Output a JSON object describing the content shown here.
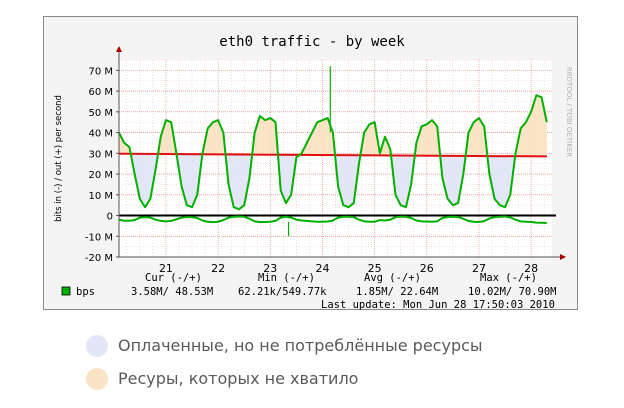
{
  "chart_data": {
    "type": "area",
    "title": "eth0 traffic - by week",
    "ylabel": "bits in (-) / out (+) per second",
    "watermark": "RRDTOOL / TOBI OETIKER",
    "ylim": [
      -20000000,
      75000000
    ],
    "yticks": [
      -20000000,
      -10000000,
      0,
      10000000,
      20000000,
      30000000,
      40000000,
      50000000,
      60000000,
      70000000
    ],
    "ytick_labels": [
      "-20 M",
      "-10 M",
      "0",
      "10 M",
      "20 M",
      "30 M",
      "40 M",
      "50 M",
      "60 M",
      "70 M"
    ],
    "xlim": [
      20.1,
      28.4
    ],
    "xticks": [
      21,
      22,
      23,
      24,
      25,
      26,
      27,
      28
    ],
    "xtick_labels": [
      "21",
      "22",
      "23",
      "24",
      "25",
      "26",
      "27",
      "28"
    ],
    "grid": true,
    "threshold": {
      "start": 29.8,
      "end": 28.5,
      "color": "#e01010"
    },
    "series": [
      {
        "name": "bps",
        "color": "#00b000",
        "x": [
          20.1,
          20.2,
          20.3,
          20.4,
          20.5,
          20.6,
          20.7,
          20.8,
          20.9,
          21.0,
          21.1,
          21.2,
          21.3,
          21.4,
          21.5,
          21.6,
          21.7,
          21.8,
          21.9,
          22.0,
          22.1,
          22.2,
          22.3,
          22.4,
          22.5,
          22.6,
          22.7,
          22.8,
          22.9,
          23.0,
          23.1,
          23.2,
          23.3,
          23.4,
          23.5,
          23.6,
          23.7,
          23.8,
          23.9,
          24.0,
          24.1,
          24.2,
          24.3,
          24.4,
          24.5,
          24.6,
          24.7,
          24.8,
          24.9,
          25.0,
          25.1,
          25.2,
          25.3,
          25.4,
          25.5,
          25.6,
          25.7,
          25.8,
          25.9,
          26.0,
          26.1,
          26.2,
          26.3,
          26.4,
          26.5,
          26.6,
          26.7,
          26.8,
          26.9,
          27.0,
          27.1,
          27.2,
          27.3,
          27.4,
          27.5,
          27.6,
          27.7,
          27.8,
          27.9,
          28.0,
          28.1,
          28.2,
          28.3
        ],
        "out": [
          40,
          35,
          33,
          20,
          8,
          4,
          8,
          22,
          38,
          46,
          45,
          30,
          14,
          5,
          4,
          10,
          30,
          42,
          45,
          46,
          40,
          15,
          4,
          3,
          5,
          18,
          40,
          48,
          46,
          47,
          45,
          12,
          6,
          10,
          28,
          30,
          35,
          40,
          45,
          46,
          47,
          40,
          14,
          5,
          4,
          6,
          25,
          40,
          44,
          45,
          30,
          38,
          32,
          10,
          5,
          4,
          15,
          35,
          43,
          44,
          46,
          43,
          18,
          8,
          5,
          6,
          20,
          40,
          45,
          47,
          43,
          20,
          8,
          5,
          4,
          10,
          30,
          42,
          45,
          50,
          58,
          57,
          45
        ],
        "in": [
          -2,
          -2.5,
          -2.5,
          -2.2,
          -1,
          -0.8,
          -1,
          -2,
          -2.6,
          -2.8,
          -2.6,
          -1.8,
          -1,
          -0.8,
          -0.8,
          -1.2,
          -2.4,
          -3,
          -3.2,
          -3,
          -2.2,
          -1,
          -0.6,
          -0.5,
          -0.6,
          -1.5,
          -2.8,
          -3.2,
          -3.1,
          -3,
          -2.6,
          -1,
          -0.6,
          -1,
          -2,
          -2.4,
          -2.6,
          -2.8,
          -3,
          -3,
          -2.9,
          -2.4,
          -1,
          -0.6,
          -0.6,
          -0.8,
          -2,
          -2.8,
          -3,
          -3,
          -2.2,
          -2.4,
          -2,
          -0.8,
          -0.6,
          -0.6,
          -1.2,
          -2.4,
          -2.8,
          -2.9,
          -3,
          -2.8,
          -1.2,
          -0.7,
          -0.6,
          -0.7,
          -1.6,
          -2.6,
          -3,
          -3.1,
          -2.7,
          -1.4,
          -0.8,
          -0.6,
          -0.5,
          -0.9,
          -2,
          -2.8,
          -3,
          -3.1,
          -3.4,
          -3.5,
          -3.6
        ]
      }
    ],
    "spikes": [
      {
        "x": 24.15,
        "value": 72
      },
      {
        "x": 23.35,
        "value": -10
      }
    ],
    "stats": {
      "headers": [
        "Cur (-/+)",
        "Min (-/+)",
        "Avg (-/+)",
        "Max (-/+)"
      ],
      "series_label": "bps",
      "values": [
        "3.58M/ 48.53M",
        "62.21k/549.77k",
        "1.85M/ 22.64M",
        "10.02M/ 70.90M"
      ],
      "last_update": "Last update: Mon Jun 28 17:50:03 2010"
    },
    "legend": [
      {
        "label": "Оплаченные, но не потреблённые ресурсы",
        "color": "#e2e6f6"
      },
      {
        "label": "Ресуры, которых не хватило",
        "color": "#fbe3c6"
      }
    ]
  }
}
